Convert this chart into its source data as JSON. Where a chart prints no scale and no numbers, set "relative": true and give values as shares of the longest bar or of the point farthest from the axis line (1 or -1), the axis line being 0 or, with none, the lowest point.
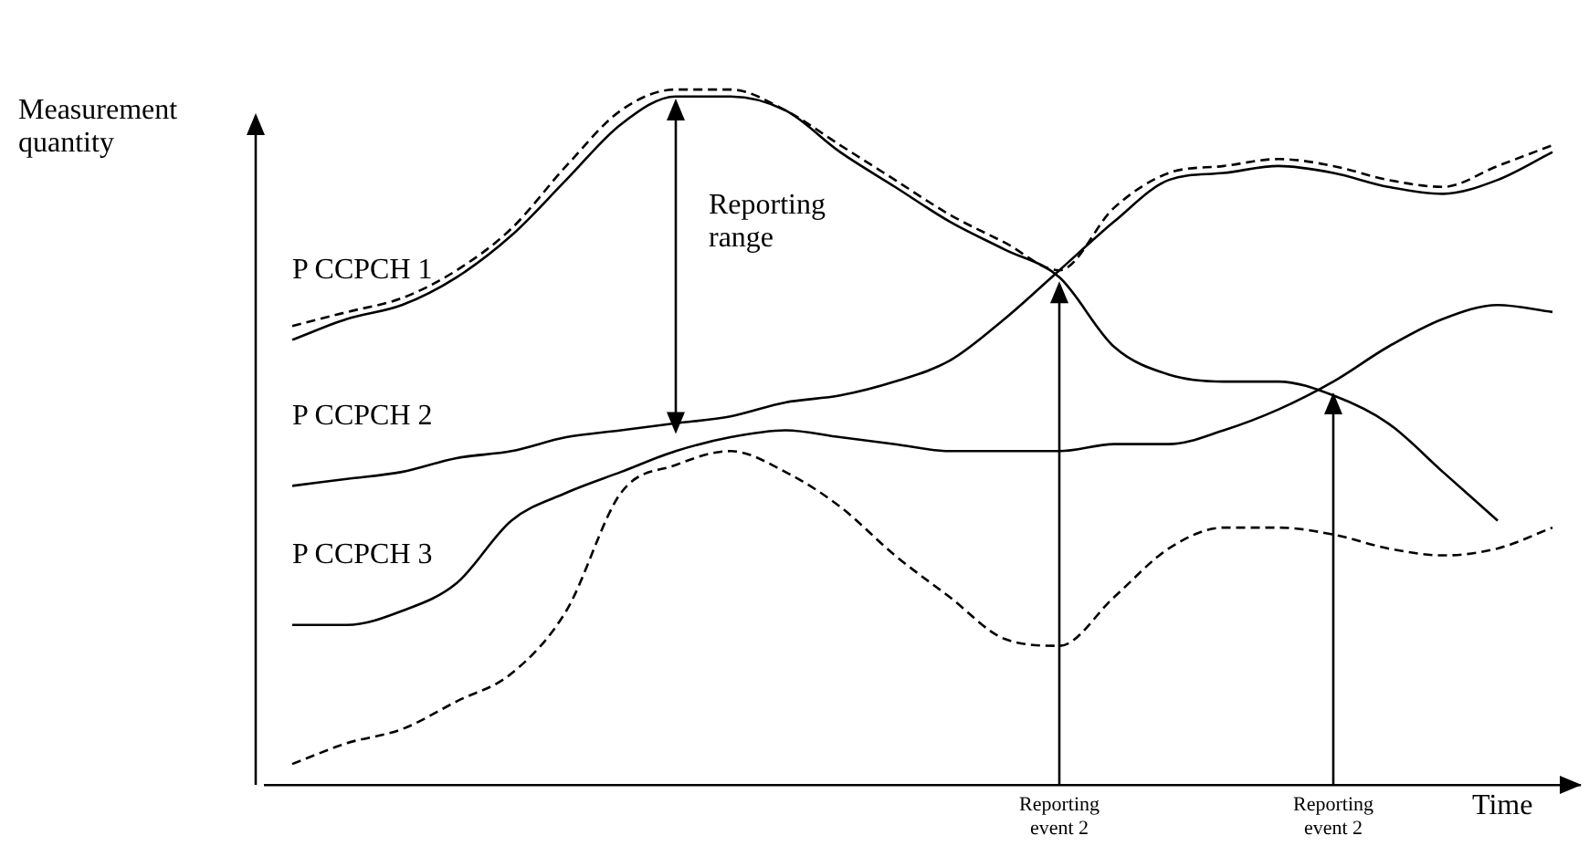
{
  "chart_data": {
    "type": "line",
    "relative": true,
    "xlabel": "Time",
    "ylabel": "Measurement quantity",
    "marker": "none",
    "legend": false,
    "grid": false,
    "categories": [
      null,
      null,
      null,
      null,
      null,
      null,
      null,
      null,
      null,
      null,
      null,
      null,
      null,
      null,
      null,
      null,
      null,
      null,
      null,
      null,
      null,
      null,
      null,
      null
    ],
    "annotations": [
      "Reporting range",
      "Reporting event 2",
      "Reporting event 2"
    ],
    "series": [
      {
        "name": "P CCPCH 1",
        "color": "#000000",
        "line_style": "solid",
        "values": [
          0.64,
          0.67,
          0.69,
          0.73,
          0.79,
          0.87,
          0.95,
          0.99,
          0.99,
          0.97,
          0.91,
          0.86,
          0.81,
          0.77,
          0.73,
          0.63,
          0.59,
          0.58,
          0.58,
          0.56,
          0.52,
          0.45,
          0.38,
          null
        ]
      },
      {
        "name": "P CCPCH 2",
        "color": "#000000",
        "line_style": "solid",
        "values": [
          0.43,
          0.44,
          0.45,
          0.47,
          0.48,
          0.5,
          0.51,
          0.52,
          0.53,
          0.55,
          0.56,
          0.58,
          0.61,
          0.67,
          0.74,
          0.81,
          0.87,
          0.88,
          0.89,
          0.88,
          0.86,
          0.85,
          0.87,
          0.91
        ]
      },
      {
        "name": "P CCPCH 3",
        "color": "#000000",
        "line_style": "solid",
        "values": [
          0.23,
          0.23,
          0.25,
          0.29,
          0.38,
          0.42,
          0.45,
          0.48,
          0.5,
          0.51,
          0.5,
          0.49,
          0.48,
          0.48,
          0.48,
          0.49,
          0.49,
          0.51,
          0.54,
          0.58,
          0.63,
          0.67,
          0.69,
          0.68
        ]
      },
      {
        "color": "#000000",
        "line_style": "dashed",
        "values": [
          0.66,
          0.68,
          0.7,
          0.74,
          0.8,
          0.89,
          0.97,
          1,
          1,
          0.97,
          0.92,
          0.87,
          0.82,
          0.78,
          0.74,
          0.83,
          0.88,
          0.89,
          0.9,
          0.89,
          0.87,
          0.86,
          0.89,
          0.92
        ]
      },
      {
        "color": "#000000",
        "line_style": "dashed",
        "values": [
          0.03,
          0.06,
          0.08,
          0.12,
          0.16,
          0.25,
          0.42,
          0.46,
          0.48,
          0.45,
          0.4,
          0.33,
          0.27,
          0.21,
          0.2,
          0.27,
          0.34,
          0.37,
          0.37,
          0.36,
          0.34,
          0.33,
          0.34,
          0.37
        ]
      }
    ]
  }
}
